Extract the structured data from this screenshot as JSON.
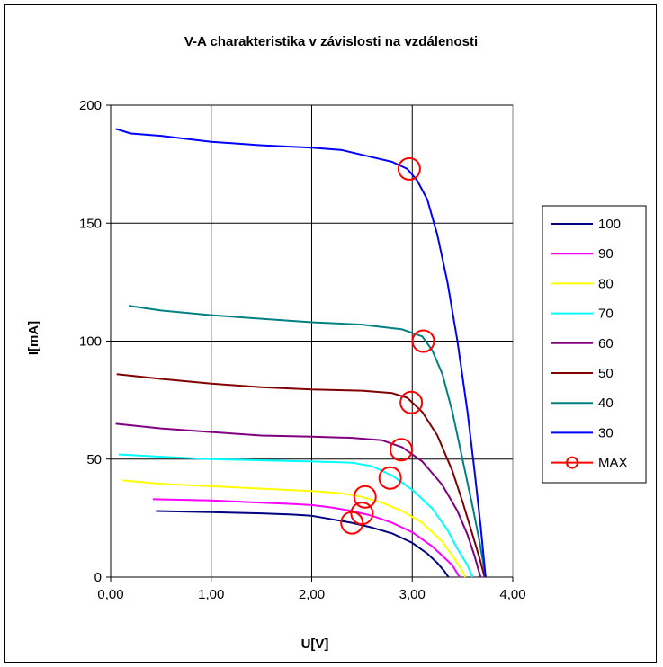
{
  "chart_data": {
    "type": "line",
    "title": "V-A charakteristika v závislosti na vzdálenosti",
    "xlabel": "U[V]",
    "ylabel": "I[mA]",
    "xlim": [
      0,
      4
    ],
    "ylim": [
      0,
      200
    ],
    "x_ticks": [
      0,
      1,
      2,
      3,
      4
    ],
    "y_ticks": [
      0,
      50,
      100,
      150,
      200
    ],
    "x_tick_labels": [
      "0,00",
      "1,00",
      "2,00",
      "3,00",
      "4,00"
    ],
    "y_tick_labels": [
      "0",
      "50",
      "100",
      "150",
      "200"
    ],
    "grid": true,
    "legend_position": "right",
    "series": [
      {
        "name": "100",
        "color": "#000080",
        "points": [
          [
            0.45,
            28
          ],
          [
            1.0,
            27.5
          ],
          [
            1.5,
            27
          ],
          [
            1.8,
            26.5
          ],
          [
            2.0,
            26
          ],
          [
            2.2,
            24.5
          ],
          [
            2.4,
            23
          ],
          [
            2.6,
            21
          ],
          [
            2.8,
            18.5
          ],
          [
            3.0,
            14.5
          ],
          [
            3.15,
            10
          ],
          [
            3.25,
            6
          ],
          [
            3.32,
            2.5
          ],
          [
            3.36,
            0
          ]
        ]
      },
      {
        "name": "90",
        "color": "#ff00ff",
        "points": [
          [
            0.42,
            33
          ],
          [
            1.0,
            32.5
          ],
          [
            1.5,
            31.5
          ],
          [
            1.8,
            31
          ],
          [
            2.0,
            30.5
          ],
          [
            2.2,
            29.5
          ],
          [
            2.4,
            28
          ],
          [
            2.6,
            26
          ],
          [
            2.8,
            23
          ],
          [
            3.0,
            19
          ],
          [
            3.2,
            13
          ],
          [
            3.3,
            9
          ],
          [
            3.4,
            5
          ],
          [
            3.47,
            0
          ]
        ]
      },
      {
        "name": "80",
        "color": "#ffff00",
        "points": [
          [
            0.12,
            41
          ],
          [
            0.5,
            39.5
          ],
          [
            1.0,
            38.5
          ],
          [
            1.5,
            37.5
          ],
          [
            2.0,
            36.5
          ],
          [
            2.3,
            35.5
          ],
          [
            2.5,
            34
          ],
          [
            2.7,
            31.5
          ],
          [
            2.9,
            28
          ],
          [
            3.1,
            23
          ],
          [
            3.3,
            15
          ],
          [
            3.4,
            9
          ],
          [
            3.48,
            4
          ],
          [
            3.53,
            0
          ]
        ]
      },
      {
        "name": "70",
        "color": "#00ffff",
        "points": [
          [
            0.08,
            52
          ],
          [
            0.5,
            51
          ],
          [
            1.0,
            50
          ],
          [
            1.5,
            49.5
          ],
          [
            2.0,
            49
          ],
          [
            2.4,
            48.5
          ],
          [
            2.6,
            47
          ],
          [
            2.8,
            43
          ],
          [
            3.0,
            37
          ],
          [
            3.2,
            29
          ],
          [
            3.35,
            20
          ],
          [
            3.45,
            12
          ],
          [
            3.55,
            5
          ],
          [
            3.6,
            0
          ]
        ]
      },
      {
        "name": "60",
        "color": "#800080",
        "points": [
          [
            0.05,
            65
          ],
          [
            0.5,
            63
          ],
          [
            1.0,
            61.5
          ],
          [
            1.5,
            60
          ],
          [
            2.0,
            59.5
          ],
          [
            2.4,
            59
          ],
          [
            2.7,
            58
          ],
          [
            2.9,
            55
          ],
          [
            3.1,
            49
          ],
          [
            3.3,
            39
          ],
          [
            3.45,
            28
          ],
          [
            3.55,
            18
          ],
          [
            3.62,
            9
          ],
          [
            3.68,
            0
          ]
        ]
      },
      {
        "name": "50",
        "color": "#800000",
        "points": [
          [
            0.06,
            86
          ],
          [
            0.5,
            84
          ],
          [
            1.0,
            82
          ],
          [
            1.5,
            80.5
          ],
          [
            2.0,
            79.5
          ],
          [
            2.5,
            79
          ],
          [
            2.8,
            78
          ],
          [
            2.95,
            76
          ],
          [
            3.1,
            70
          ],
          [
            3.25,
            60
          ],
          [
            3.4,
            45
          ],
          [
            3.5,
            32
          ],
          [
            3.6,
            18
          ],
          [
            3.67,
            8
          ],
          [
            3.72,
            0
          ]
        ]
      },
      {
        "name": "40",
        "color": "#008080",
        "points": [
          [
            0.18,
            115
          ],
          [
            0.5,
            113
          ],
          [
            1.0,
            111
          ],
          [
            1.5,
            109.5
          ],
          [
            2.0,
            108
          ],
          [
            2.5,
            107
          ],
          [
            2.9,
            105
          ],
          [
            3.1,
            102
          ],
          [
            3.2,
            96
          ],
          [
            3.3,
            86
          ],
          [
            3.4,
            70
          ],
          [
            3.5,
            50
          ],
          [
            3.6,
            30
          ],
          [
            3.67,
            15
          ],
          [
            3.73,
            0
          ]
        ]
      },
      {
        "name": "30",
        "color": "#0000ff",
        "points": [
          [
            0.05,
            190
          ],
          [
            0.2,
            188
          ],
          [
            0.5,
            187
          ],
          [
            1.0,
            184.5
          ],
          [
            1.5,
            183
          ],
          [
            2.0,
            182
          ],
          [
            2.3,
            181
          ],
          [
            2.6,
            178
          ],
          [
            2.8,
            176
          ],
          [
            2.95,
            173
          ],
          [
            3.05,
            168
          ],
          [
            3.15,
            160
          ],
          [
            3.25,
            145
          ],
          [
            3.35,
            125
          ],
          [
            3.45,
            100
          ],
          [
            3.55,
            70
          ],
          [
            3.62,
            45
          ],
          [
            3.68,
            22
          ],
          [
            3.73,
            0
          ]
        ]
      }
    ],
    "max_points": {
      "name": "MAX",
      "color": "#ff0000",
      "points": [
        [
          2.97,
          173
        ],
        [
          3.11,
          100
        ],
        [
          2.99,
          74
        ],
        [
          2.89,
          54
        ],
        [
          2.78,
          42
        ],
        [
          2.53,
          34
        ],
        [
          2.5,
          27
        ],
        [
          2.4,
          23
        ]
      ]
    }
  }
}
